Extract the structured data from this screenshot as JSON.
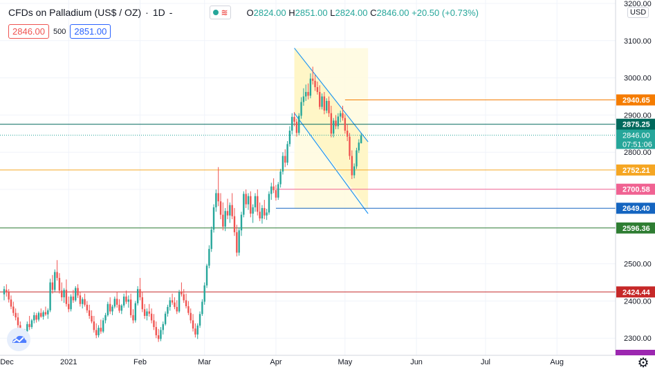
{
  "legend": {
    "title": "CFDs on Palladium (US$ / OZ)",
    "interval": "1D",
    "dash": "-",
    "open_label": "O",
    "open": "2824.00",
    "high_label": "H",
    "high": "2851.00",
    "low_label": "L",
    "low": "2824.00",
    "close_label": "C",
    "close": "2846.00",
    "change": "+20.50 (+0.73%)"
  },
  "quotes": {
    "bid": "2846.00",
    "size": "500",
    "ask": "2851.00"
  },
  "currency_button": "USD",
  "colors": {
    "up": "#26a69a",
    "down": "#ef5350",
    "grid": "#f0f3fa",
    "channel_fill": "#fffbe0",
    "channel_line": "#2196f3"
  },
  "chart_data": {
    "type": "candlestick",
    "y_range": [
      2280,
      3200
    ],
    "y_ticks": [
      2300,
      2400,
      2500,
      2600,
      2700,
      2800,
      2900,
      3000,
      3100,
      3200
    ],
    "y_tick_labels": [
      "2300.00",
      "2400.00",
      "2500.00",
      "2600.00",
      "2700.00",
      "2800.00",
      "2900.00",
      "3000.00",
      "3100.00",
      "3200.00"
    ],
    "x_labels": [
      "Dec",
      "2021",
      "Feb",
      "Mar",
      "Apr",
      "May",
      "Jun",
      "Jul",
      "Aug"
    ],
    "x_label_days": [
      -4,
      28,
      59,
      87,
      118,
      148,
      179,
      209,
      240
    ],
    "candles": [
      [
        0,
        2418,
        2440,
        2402,
        2432
      ],
      [
        1,
        2430,
        2445,
        2412,
        2425
      ],
      [
        2,
        2425,
        2432,
        2396,
        2404
      ],
      [
        3,
        2404,
        2415,
        2378,
        2385
      ],
      [
        4,
        2385,
        2398,
        2360,
        2368
      ],
      [
        5,
        2368,
        2380,
        2348,
        2356
      ],
      [
        6,
        2356,
        2368,
        2325,
        2335
      ],
      [
        7,
        2335,
        2345,
        2300,
        2310
      ],
      [
        8,
        2310,
        2322,
        2288,
        2298
      ],
      [
        9,
        2298,
        2325,
        2292,
        2318
      ],
      [
        10,
        2318,
        2345,
        2312,
        2338
      ],
      [
        11,
        2338,
        2360,
        2322,
        2330
      ],
      [
        12,
        2330,
        2352,
        2325,
        2348
      ],
      [
        13,
        2348,
        2370,
        2340,
        2362
      ],
      [
        14,
        2362,
        2368,
        2342,
        2350
      ],
      [
        15,
        2350,
        2372,
        2345,
        2368
      ],
      [
        16,
        2368,
        2380,
        2355,
        2358
      ],
      [
        17,
        2358,
        2375,
        2350,
        2370
      ],
      [
        18,
        2370,
        2385,
        2360,
        2364
      ],
      [
        19,
        2364,
        2380,
        2352,
        2375
      ],
      [
        20,
        2375,
        2460,
        2370,
        2450
      ],
      [
        21,
        2450,
        2470,
        2420,
        2430
      ],
      [
        22,
        2430,
        2485,
        2425,
        2478
      ],
      [
        23,
        2478,
        2510,
        2455,
        2462
      ],
      [
        24,
        2462,
        2475,
        2420,
        2428
      ],
      [
        25,
        2428,
        2450,
        2400,
        2410
      ],
      [
        26,
        2410,
        2435,
        2395,
        2430
      ],
      [
        27,
        2430,
        2458,
        2385,
        2392
      ],
      [
        28,
        2392,
        2412,
        2370,
        2378
      ],
      [
        29,
        2378,
        2418,
        2372,
        2412
      ],
      [
        30,
        2412,
        2430,
        2395,
        2402
      ],
      [
        31,
        2402,
        2440,
        2398,
        2435
      ],
      [
        32,
        2435,
        2445,
        2408,
        2415
      ],
      [
        33,
        2415,
        2425,
        2385,
        2392
      ],
      [
        34,
        2392,
        2410,
        2380,
        2405
      ],
      [
        35,
        2405,
        2420,
        2385,
        2390
      ],
      [
        36,
        2390,
        2400,
        2368,
        2375
      ],
      [
        37,
        2375,
        2390,
        2352,
        2360
      ],
      [
        38,
        2360,
        2375,
        2340,
        2345
      ],
      [
        39,
        2345,
        2360,
        2315,
        2322
      ],
      [
        40,
        2322,
        2340,
        2300,
        2308
      ],
      [
        41,
        2308,
        2335,
        2302,
        2328
      ],
      [
        42,
        2328,
        2350,
        2312,
        2318
      ],
      [
        43,
        2318,
        2355,
        2314,
        2348
      ],
      [
        44,
        2348,
        2368,
        2340,
        2362
      ],
      [
        45,
        2362,
        2398,
        2358,
        2392
      ],
      [
        46,
        2392,
        2410,
        2365,
        2372
      ],
      [
        47,
        2372,
        2390,
        2362,
        2385
      ],
      [
        48,
        2385,
        2412,
        2380,
        2406
      ],
      [
        49,
        2406,
        2425,
        2382,
        2390
      ],
      [
        50,
        2390,
        2405,
        2368,
        2374
      ],
      [
        51,
        2374,
        2392,
        2365,
        2388
      ],
      [
        52,
        2388,
        2420,
        2382,
        2412
      ],
      [
        53,
        2412,
        2428,
        2392,
        2398
      ],
      [
        54,
        2398,
        2415,
        2382,
        2404
      ],
      [
        55,
        2404,
        2420,
        2355,
        2362
      ],
      [
        56,
        2362,
        2378,
        2340,
        2348
      ],
      [
        57,
        2348,
        2400,
        2342,
        2394
      ],
      [
        58,
        2394,
        2440,
        2388,
        2432
      ],
      [
        59,
        2432,
        2462,
        2402,
        2410
      ],
      [
        60,
        2410,
        2425,
        2370,
        2378
      ],
      [
        61,
        2378,
        2392,
        2352,
        2360
      ],
      [
        62,
        2360,
        2380,
        2348,
        2372
      ],
      [
        63,
        2372,
        2392,
        2358,
        2366
      ],
      [
        64,
        2366,
        2380,
        2340,
        2348
      ],
      [
        65,
        2348,
        2365,
        2322,
        2330
      ],
      [
        66,
        2330,
        2345,
        2300,
        2308
      ],
      [
        67,
        2308,
        2325,
        2290,
        2298
      ],
      [
        68,
        2298,
        2330,
        2292,
        2322
      ],
      [
        69,
        2322,
        2345,
        2310,
        2338
      ],
      [
        70,
        2338,
        2372,
        2334,
        2366
      ],
      [
        71,
        2366,
        2390,
        2358,
        2384
      ],
      [
        72,
        2384,
        2410,
        2374,
        2402
      ],
      [
        73,
        2402,
        2420,
        2390,
        2396
      ],
      [
        74,
        2396,
        2410,
        2378,
        2384
      ],
      [
        75,
        2384,
        2402,
        2365,
        2372
      ],
      [
        76,
        2372,
        2430,
        2368,
        2424
      ],
      [
        77,
        2424,
        2450,
        2412,
        2418
      ],
      [
        78,
        2418,
        2432,
        2395,
        2402
      ],
      [
        79,
        2402,
        2420,
        2380,
        2386
      ],
      [
        80,
        2386,
        2400,
        2362,
        2368
      ],
      [
        81,
        2368,
        2380,
        2340,
        2348
      ],
      [
        82,
        2348,
        2365,
        2318,
        2326
      ],
      [
        83,
        2326,
        2340,
        2302,
        2310
      ],
      [
        84,
        2310,
        2340,
        2298,
        2334
      ],
      [
        85,
        2334,
        2372,
        2328,
        2365
      ],
      [
        86,
        2365,
        2405,
        2360,
        2398
      ],
      [
        87,
        2398,
        2450,
        2390,
        2442
      ],
      [
        88,
        2442,
        2500,
        2435,
        2495
      ],
      [
        89,
        2495,
        2550,
        2488,
        2540
      ],
      [
        90,
        2540,
        2600,
        2532,
        2592
      ],
      [
        91,
        2592,
        2660,
        2584,
        2652
      ],
      [
        92,
        2652,
        2700,
        2640,
        2690
      ],
      [
        93,
        2690,
        2760,
        2655,
        2668
      ],
      [
        94,
        2668,
        2690,
        2620,
        2632
      ],
      [
        95,
        2632,
        2665,
        2590,
        2600
      ],
      [
        96,
        2600,
        2650,
        2588,
        2642
      ],
      [
        97,
        2642,
        2675,
        2620,
        2630
      ],
      [
        98,
        2630,
        2665,
        2610,
        2658
      ],
      [
        99,
        2658,
        2690,
        2620,
        2628
      ],
      [
        100,
        2628,
        2650,
        2575,
        2585
      ],
      [
        101,
        2585,
        2605,
        2520,
        2530
      ],
      [
        102,
        2530,
        2598,
        2522,
        2590
      ],
      [
        103,
        2590,
        2640,
        2575,
        2632
      ],
      [
        104,
        2632,
        2695,
        2625,
        2688
      ],
      [
        105,
        2688,
        2700,
        2650,
        2660
      ],
      [
        106,
        2660,
        2690,
        2645,
        2682
      ],
      [
        107,
        2682,
        2695,
        2625,
        2635
      ],
      [
        108,
        2635,
        2660,
        2610,
        2652
      ],
      [
        109,
        2652,
        2690,
        2640,
        2682
      ],
      [
        110,
        2682,
        2700,
        2630,
        2640
      ],
      [
        111,
        2640,
        2665,
        2615,
        2622
      ],
      [
        112,
        2622,
        2658,
        2608,
        2650
      ],
      [
        113,
        2650,
        2672,
        2620,
        2630
      ],
      [
        114,
        2630,
        2648,
        2618,
        2638
      ],
      [
        115,
        2638,
        2695,
        2632,
        2688
      ],
      [
        116,
        2688,
        2718,
        2672,
        2708
      ],
      [
        117,
        2708,
        2730,
        2690,
        2698
      ],
      [
        118,
        2698,
        2712,
        2670,
        2678
      ],
      [
        119,
        2678,
        2720,
        2672,
        2714
      ],
      [
        120,
        2714,
        2755,
        2705,
        2748
      ],
      [
        121,
        2748,
        2800,
        2740,
        2790
      ],
      [
        122,
        2790,
        2808,
        2760,
        2772
      ],
      [
        123,
        2772,
        2830,
        2765,
        2822
      ],
      [
        124,
        2822,
        2870,
        2815,
        2858
      ],
      [
        125,
        2858,
        2905,
        2848,
        2895
      ],
      [
        126,
        2895,
        2908,
        2870,
        2882
      ],
      [
        127,
        2882,
        2890,
        2842,
        2852
      ],
      [
        128,
        2852,
        2905,
        2845,
        2898
      ],
      [
        129,
        2898,
        2948,
        2890,
        2935
      ],
      [
        130,
        2935,
        2972,
        2925,
        2950
      ],
      [
        131,
        2950,
        2982,
        2938,
        2962
      ],
      [
        132,
        2962,
        2985,
        2942,
        2952
      ],
      [
        133,
        2952,
        3012,
        2945,
        2998
      ],
      [
        134,
        2998,
        3030,
        2982,
        2992
      ],
      [
        135,
        2992,
        3008,
        2965,
        2975
      ],
      [
        136,
        2975,
        2990,
        2955,
        2962
      ],
      [
        137,
        2962,
        2980,
        2915,
        2922
      ],
      [
        138,
        2922,
        2958,
        2915,
        2950
      ],
      [
        139,
        2950,
        2962,
        2902,
        2912
      ],
      [
        140,
        2912,
        2945,
        2905,
        2938
      ],
      [
        141,
        2938,
        2950,
        2895,
        2905
      ],
      [
        142,
        2905,
        2925,
        2840,
        2850
      ],
      [
        143,
        2850,
        2892,
        2840,
        2885
      ],
      [
        144,
        2885,
        2900,
        2862,
        2870
      ],
      [
        145,
        2870,
        2905,
        2862,
        2896
      ],
      [
        146,
        2896,
        2912,
        2880,
        2905
      ],
      [
        147,
        2905,
        2925,
        2885,
        2892
      ],
      [
        148,
        2892,
        2902,
        2850,
        2858
      ],
      [
        149,
        2858,
        2875,
        2830,
        2842
      ],
      [
        150,
        2842,
        2852,
        2780,
        2790
      ],
      [
        151,
        2790,
        2805,
        2728,
        2738
      ],
      [
        152,
        2738,
        2770,
        2730,
        2762
      ],
      [
        153,
        2762,
        2812,
        2755,
        2805
      ],
      [
        154,
        2805,
        2835,
        2798,
        2826
      ],
      [
        155,
        2824,
        2851,
        2824,
        2846
      ]
    ],
    "horizontal_levels": [
      {
        "value": 2940.65,
        "label": "2940.65",
        "color": "#f57c00"
      },
      {
        "value": 2875.25,
        "label": "2875.25",
        "color": "#00695c"
      },
      {
        "value": 2752.21,
        "label": "2752.21",
        "color": "#f5a623"
      },
      {
        "value": 2700.58,
        "label": "2700.58",
        "color": "#f06292"
      },
      {
        "value": 2649.4,
        "label": "2649.40",
        "color": "#1565c0"
      },
      {
        "value": 2596.36,
        "label": "2596.36",
        "color": "#2e7d32"
      },
      {
        "value": 2424.44,
        "label": "2424.44",
        "color": "#c62828"
      }
    ],
    "current_price": {
      "value": 2846.0,
      "label": "2846.00",
      "countdown": "07:51:06"
    },
    "channel": {
      "upper": [
        [
          126,
          3080
        ],
        [
          158,
          2828
        ]
      ],
      "lower": [
        [
          126,
          2905
        ],
        [
          158,
          2635
        ]
      ],
      "box_days": [
        126,
        158
      ],
      "box_range": [
        2648,
        3080
      ]
    }
  }
}
